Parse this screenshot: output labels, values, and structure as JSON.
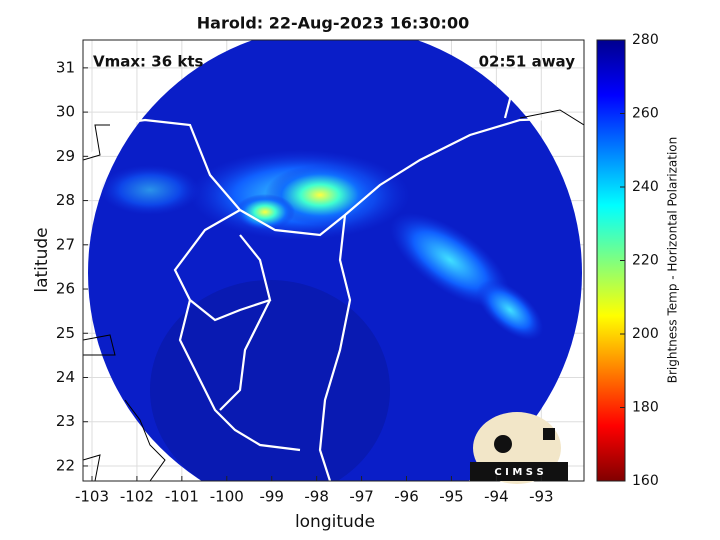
{
  "chart_data": {
    "type": "map",
    "title": "Harold: 22-Aug-2023 16:30:00",
    "annotations": [
      "Vmax: 36 kts",
      "02:51 away"
    ],
    "xlabel": "longitude",
    "ylabel": "latitude",
    "xlim": [
      -103.2,
      -92.05
    ],
    "ylim": [
      21.66,
      31.63
    ],
    "xticks": [
      -103,
      -102,
      -101,
      -100,
      -99,
      -98,
      -97,
      -96,
      -95,
      -94,
      -93
    ],
    "yticks": [
      22,
      23,
      24,
      25,
      26,
      27,
      28,
      29,
      30,
      31
    ],
    "grid": true,
    "colorbar": {
      "label": "Brightness Temp - Horizontal Polarization",
      "lim": [
        160,
        280
      ],
      "ticks": [
        160,
        180,
        200,
        220,
        240,
        260,
        280
      ],
      "colormap": "jet"
    },
    "logo": "C I M S S"
  }
}
